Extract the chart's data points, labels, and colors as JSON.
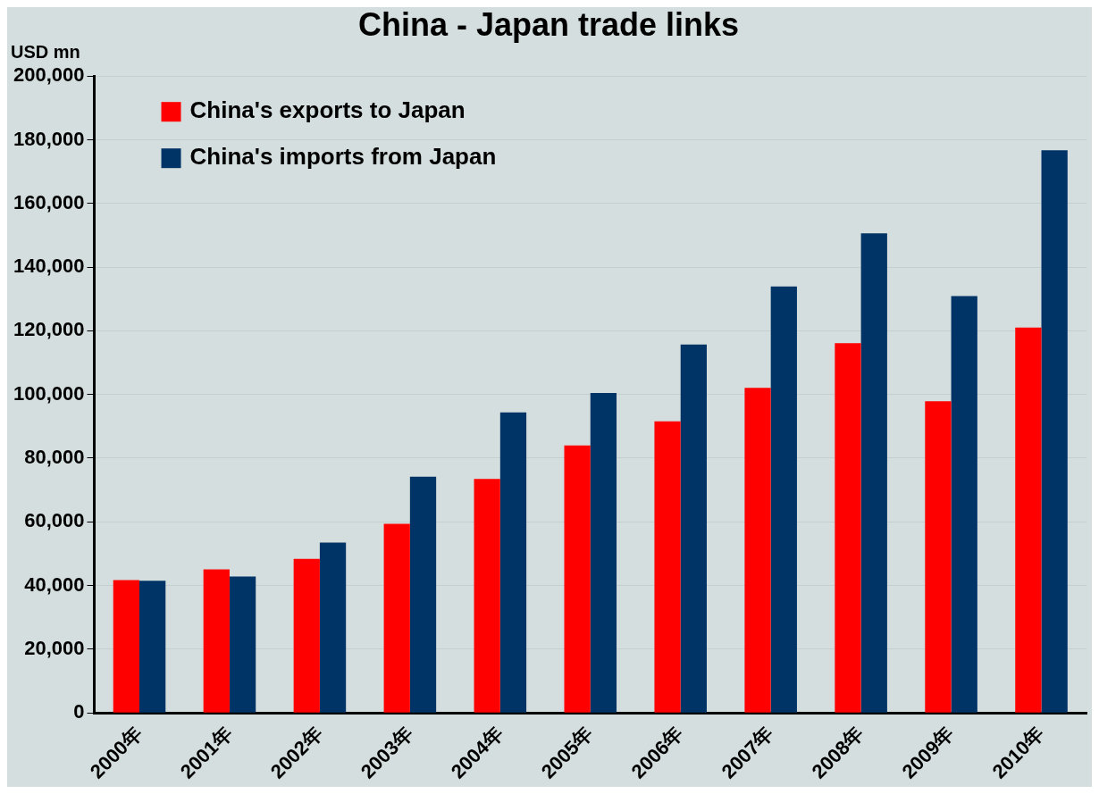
{
  "chart_data": {
    "type": "bar",
    "title": "China - Japan trade links",
    "ylabel": "USD mn",
    "categories": [
      "2000年",
      "2001年",
      "2002年",
      "2003年",
      "2004年",
      "2005年",
      "2006年",
      "2007年",
      "2008年",
      "2009年",
      "2010年"
    ],
    "series": [
      {
        "name": "China's exports to Japan",
        "color": "#ff0000",
        "values": [
          41700,
          45100,
          48400,
          59400,
          73500,
          84000,
          91600,
          102100,
          116100,
          97900,
          121000
        ]
      },
      {
        "name": "China's imports from Japan",
        "color": "#003366",
        "values": [
          41500,
          42800,
          53500,
          74200,
          94400,
          100500,
          115700,
          133900,
          150600,
          130900,
          176700
        ]
      }
    ],
    "ylim": [
      0,
      200000
    ],
    "yticks": [
      {
        "value": 0,
        "label": "0"
      },
      {
        "value": 20000,
        "label": "20,000"
      },
      {
        "value": 40000,
        "label": "40,000"
      },
      {
        "value": 60000,
        "label": "60,000"
      },
      {
        "value": 80000,
        "label": "80,000"
      },
      {
        "value": 100000,
        "label": "100,000"
      },
      {
        "value": 120000,
        "label": "120,000"
      },
      {
        "value": 140000,
        "label": "140,000"
      },
      {
        "value": 160000,
        "label": "160,000"
      },
      {
        "value": 180000,
        "label": "180,000"
      },
      {
        "value": 200000,
        "label": "200,000"
      }
    ],
    "grid": "y",
    "legend": "top left"
  }
}
